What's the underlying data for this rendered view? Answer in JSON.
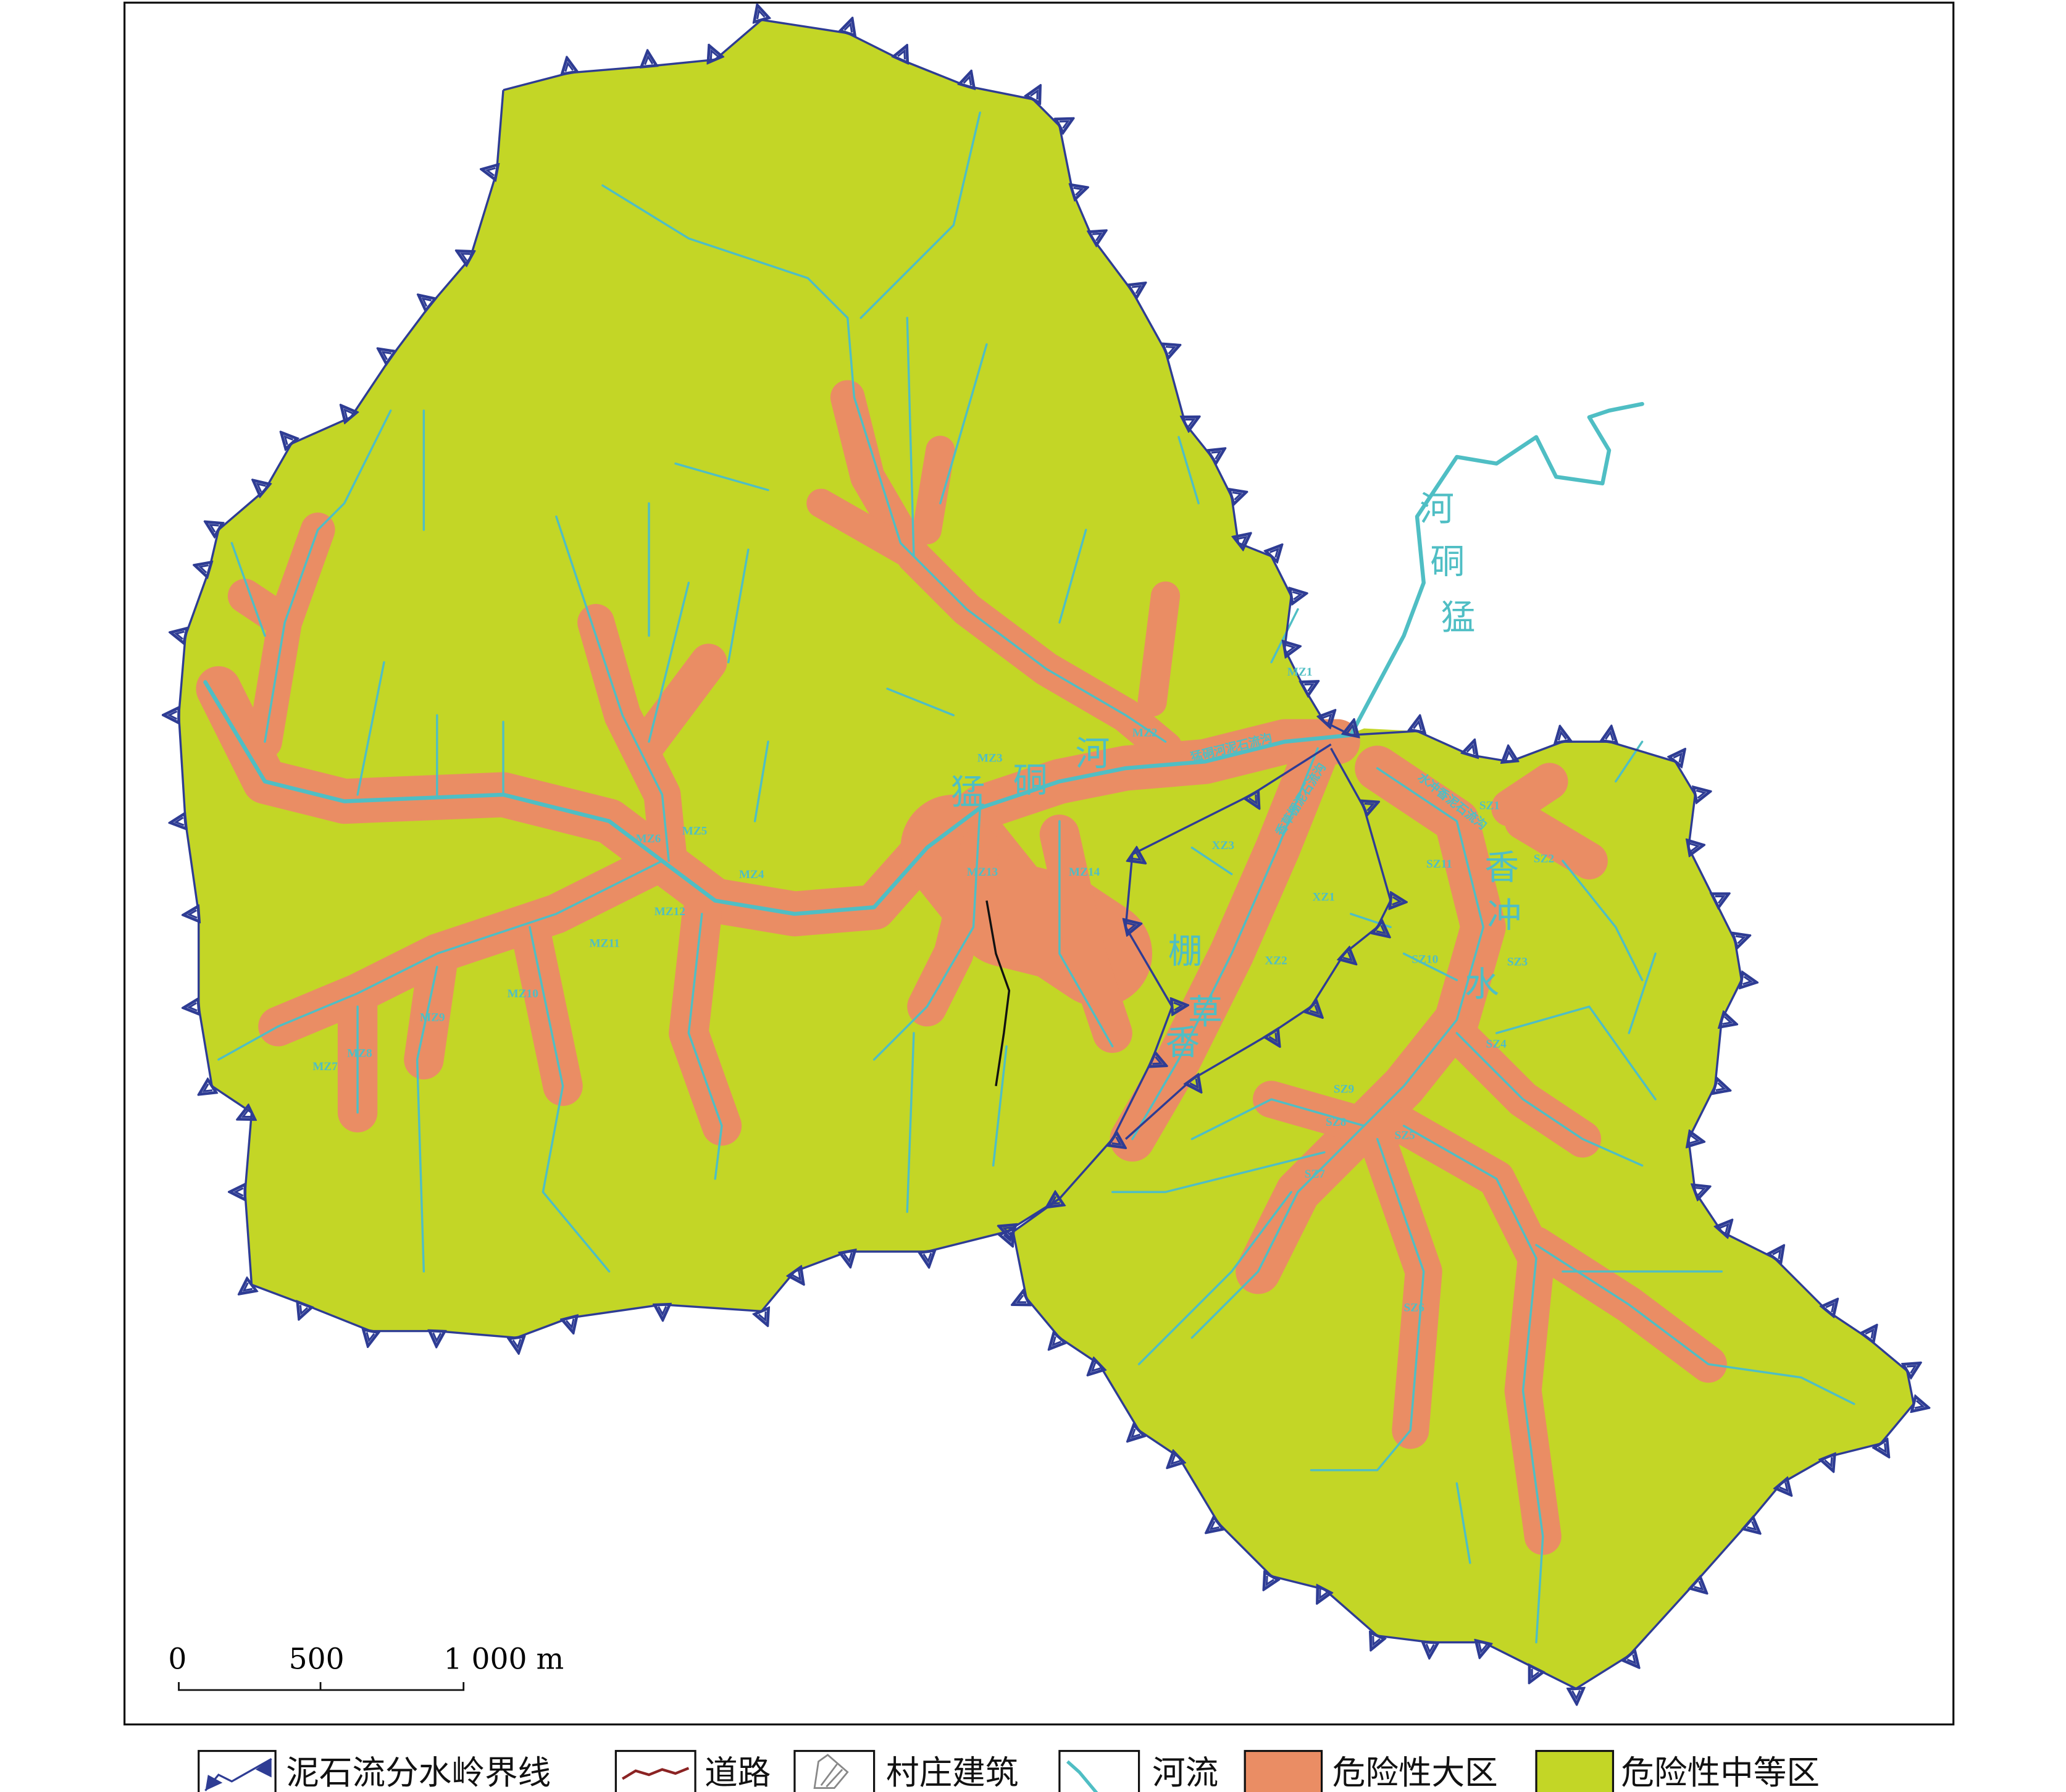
{
  "colors": {
    "high_hazard": "#ea8d64",
    "medium_hazard": "#c3d626",
    "river": "#4fbec4",
    "watershed_boundary": "#2e3c94",
    "road": "#8b2323",
    "frame": "#111111"
  },
  "map": {
    "river_names": {
      "mengdong_main": [
        "猛",
        "硐",
        "河"
      ],
      "mengdong_outside": [
        "河",
        "硐",
        "猛"
      ],
      "xiangcaopeng": [
        "棚",
        "草",
        "香"
      ],
      "xiangchongshui": [
        "香",
        "冲",
        "水"
      ]
    },
    "channel_names": [
      "猛硐河泥石流沟",
      "香草棚泥石流沟",
      "水冲香泥石流沟"
    ],
    "gully_labels": [
      "MZ1",
      "MZ2",
      "MZ3",
      "MZ4",
      "MZ5",
      "MZ6",
      "MZ7",
      "MZ8",
      "MZ9",
      "MZ10",
      "MZ11",
      "MZ12",
      "MZ13",
      "MZ14",
      "SZ1",
      "SZ2",
      "SZ3",
      "SZ4",
      "SZ5",
      "SZ6",
      "SZ7",
      "SZ8",
      "SZ9",
      "SZ10",
      "SZ11",
      "XZ1",
      "XZ2",
      "XZ3"
    ]
  },
  "scale_bar": {
    "ticks": [
      "0",
      "500",
      "1 000 m"
    ]
  },
  "legend": {
    "items": [
      {
        "icon": "watershed-boundary-icon",
        "label": "泥石流分水岭界线"
      },
      {
        "icon": "road-icon",
        "label": "道路"
      },
      {
        "icon": "village-building-icon",
        "label": "村庄建筑"
      },
      {
        "icon": "river-icon",
        "label": "河流"
      },
      {
        "icon": "high-hazard-swatch",
        "label": "危险性大区"
      },
      {
        "icon": "medium-hazard-swatch",
        "label": "危险性中等区"
      }
    ]
  }
}
